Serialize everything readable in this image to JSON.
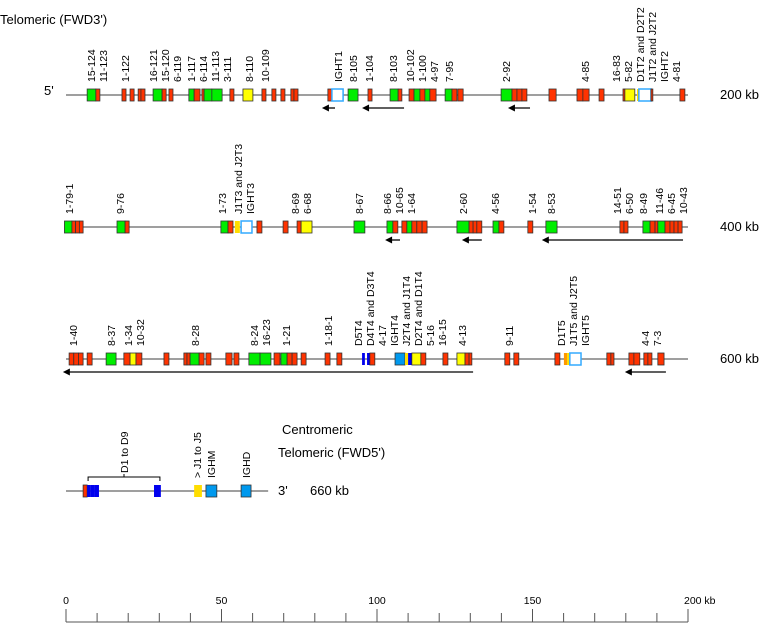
{
  "title_top": "Telomeric (FWD3')",
  "five_prime": "5'",
  "three_prime": "3'",
  "centromeric": "Centromeric",
  "title_bottom": "Telomeric (FWD5')",
  "colors": {
    "r": "#ff3300",
    "g": "#00ee00",
    "y": "#ffff00",
    "ys": "#ffdd00",
    "w": "#ffffff",
    "l": "#0099ee",
    "b": "#0000ee",
    "o": "#ff9900",
    "line": "#666666",
    "w_border": "#33aaff"
  },
  "scale": {
    "min": 0,
    "max": 200,
    "unit_label": "200 kb",
    "ticks": [
      0,
      50,
      100,
      150
    ],
    "minor_step": 10
  },
  "rows": [
    {
      "end_label": "200 kb",
      "boxes": [
        [
          6.8,
          9.6,
          "g"
        ],
        [
          9.6,
          10.9,
          "r"
        ],
        [
          18.0,
          19.3,
          "r"
        ],
        [
          20.6,
          21.9,
          "r"
        ],
        [
          23.2,
          24.1,
          "r"
        ],
        [
          24.1,
          25.4,
          "r"
        ],
        [
          28.0,
          30.9,
          "g"
        ],
        [
          30.9,
          32.2,
          "r"
        ],
        [
          33.1,
          34.4,
          "r"
        ],
        [
          39.5,
          41.2,
          "g"
        ],
        [
          41.2,
          43.1,
          "r"
        ],
        [
          43.7,
          44.4,
          "r"
        ],
        [
          44.4,
          46.9,
          "g"
        ],
        [
          46.9,
          50.2,
          "g"
        ],
        [
          52.7,
          54.0,
          "r"
        ],
        [
          56.9,
          60.1,
          "y"
        ],
        [
          63.0,
          64.3,
          "r"
        ],
        [
          66.2,
          67.5,
          "r"
        ],
        [
          69.1,
          70.4,
          "r"
        ],
        [
          72.3,
          73.3,
          "r"
        ],
        [
          73.3,
          74.6,
          "r"
        ],
        [
          84.2,
          85.5,
          "r"
        ],
        [
          85.5,
          89.1,
          "w"
        ],
        [
          90.7,
          93.9,
          "g"
        ],
        [
          97.1,
          98.4,
          "r"
        ],
        [
          104.2,
          106.8,
          "g"
        ],
        [
          106.8,
          108.0,
          "r"
        ],
        [
          110.3,
          111.9,
          "r"
        ],
        [
          111.9,
          113.8,
          "g"
        ],
        [
          113.8,
          115.4,
          "r"
        ],
        [
          115.4,
          117.0,
          "g"
        ],
        [
          117.0,
          119.0,
          "r"
        ],
        [
          121.9,
          124.1,
          "g"
        ],
        [
          124.1,
          125.7,
          "r"
        ],
        [
          126.0,
          127.7,
          "r"
        ],
        [
          139.9,
          143.4,
          "g"
        ],
        [
          143.4,
          145.0,
          "r"
        ],
        [
          145.0,
          146.6,
          "r"
        ],
        [
          146.6,
          148.2,
          "r"
        ],
        [
          155.3,
          157.6,
          "r"
        ],
        [
          164.3,
          166.2,
          "r"
        ],
        [
          166.2,
          168.2,
          "r"
        ],
        [
          171.4,
          173.0,
          "r"
        ],
        [
          179.1,
          179.7,
          "r"
        ],
        [
          179.7,
          182.9,
          "y"
        ],
        [
          183.6,
          184.2,
          "ys"
        ],
        [
          184.2,
          188.1,
          "w"
        ],
        [
          188.1,
          188.7,
          "r"
        ],
        [
          197.4,
          199.0,
          "r"
        ]
      ],
      "arrows": [
        [
          86.5,
          82.3
        ],
        [
          108.7,
          95.2
        ],
        [
          149.2,
          142.1
        ]
      ],
      "labels": [
        [
          "15-124",
          8.0
        ],
        [
          "11-123",
          10.9
        ],
        [
          "1-122",
          19.0
        ],
        [
          "16-121",
          28.0
        ],
        [
          "15-120",
          31.2
        ],
        [
          "6-119",
          34.4
        ],
        [
          "1-117",
          40.2
        ],
        [
          "6-114",
          43.4
        ],
        [
          "11-113",
          46.3
        ],
        [
          "3-111",
          49.5
        ],
        [
          "8-110",
          58.8
        ],
        [
          "10-109",
          64.0
        ],
        [
          "IGHT1",
          87.4
        ],
        [
          "8-105",
          92.3
        ],
        [
          "1-104",
          97.4
        ],
        [
          "8-103",
          105.1
        ],
        [
          "10-102",
          110.6
        ],
        [
          "1-100",
          113.5
        ],
        [
          "4-97",
          116.4
        ],
        [
          "7-95",
          123.1
        ],
        [
          "2-92",
          141.5
        ],
        [
          "4-85",
          166.9
        ],
        [
          "16-83",
          176.8
        ],
        [
          "5-82",
          179.7
        ],
        [
          "D1T2 and D2T2",
          182.6
        ],
        [
          "J1T2 and J2T2",
          185.5
        ],
        [
          "IGHT2",
          188.4
        ],
        [
          "4-81",
          192.6
        ]
      ]
    },
    {
      "end_label": "400 kb",
      "boxes": [
        [
          -0.5,
          1.9,
          "g"
        ],
        [
          1.9,
          3.1,
          "r"
        ],
        [
          3.1,
          4.3,
          "r"
        ],
        [
          4.3,
          5.5,
          "r"
        ],
        [
          16.4,
          19.0,
          "g"
        ],
        [
          19.0,
          20.3,
          "r"
        ],
        [
          49.8,
          52.1,
          "g"
        ],
        [
          52.1,
          53.7,
          "r"
        ],
        [
          54.3,
          55.9,
          "ys"
        ],
        [
          56.3,
          59.8,
          "w"
        ],
        [
          61.4,
          63.0,
          "r"
        ],
        [
          69.8,
          71.4,
          "r"
        ],
        [
          74.3,
          75.6,
          "r"
        ],
        [
          75.6,
          79.1,
          "y"
        ],
        [
          92.6,
          96.1,
          "g"
        ],
        [
          103.2,
          105.1,
          "g"
        ],
        [
          105.1,
          106.7,
          "r"
        ],
        [
          108.0,
          109.6,
          "r"
        ],
        [
          109.6,
          111.2,
          "g"
        ],
        [
          111.2,
          112.8,
          "r"
        ],
        [
          112.8,
          114.5,
          "r"
        ],
        [
          114.5,
          116.1,
          "r"
        ],
        [
          125.7,
          129.6,
          "g"
        ],
        [
          129.6,
          130.9,
          "r"
        ],
        [
          130.9,
          132.1,
          "r"
        ],
        [
          132.1,
          133.7,
          "r"
        ],
        [
          137.3,
          139.2,
          "g"
        ],
        [
          139.2,
          140.8,
          "r"
        ],
        [
          148.5,
          150.1,
          "r"
        ],
        [
          154.3,
          157.9,
          "g"
        ],
        [
          178.1,
          179.4,
          "r"
        ],
        [
          179.4,
          180.7,
          "r"
        ],
        [
          185.5,
          187.8,
          "g"
        ],
        [
          187.8,
          189.4,
          "r"
        ],
        [
          189.4,
          190.3,
          "r"
        ],
        [
          190.3,
          192.6,
          "g"
        ],
        [
          192.6,
          194.2,
          "r"
        ],
        [
          194.2,
          195.5,
          "r"
        ],
        [
          195.5,
          196.8,
          "r"
        ],
        [
          196.8,
          198.1,
          "r"
        ]
      ],
      "arrows": [
        [
          107.4,
          102.6
        ],
        [
          133.7,
          127.3
        ],
        [
          198.4,
          153.0
        ]
      ],
      "labels": [
        [
          "1-79-1",
          1.0
        ],
        [
          "9-76",
          17.4
        ],
        [
          "1-73",
          50.2
        ],
        [
          "J1T3 and J2T3",
          55.3
        ],
        [
          "IGHT3",
          58.2
        ],
        [
          "8-69",
          73.6
        ],
        [
          "6-68",
          76.5
        ],
        [
          "8-67",
          94.2
        ],
        [
          "8-66",
          103.2
        ],
        [
          "10-65",
          106.1
        ],
        [
          "1-64",
          109.0
        ],
        [
          "2-60",
          127.6
        ],
        [
          "4-56",
          137.9
        ],
        [
          "1-54",
          149.8
        ],
        [
          "8-53",
          155.9
        ],
        [
          "14-51",
          177.1
        ],
        [
          "6-50",
          180.0
        ],
        [
          "8-49",
          185.5
        ],
        [
          "11-46",
          190.7
        ],
        [
          "6-45",
          193.2
        ],
        [
          "10-43",
          196.1
        ]
      ]
    },
    {
      "end_label": "600 kb",
      "boxes": [
        [
          1.0,
          2.5,
          "r"
        ],
        [
          2.5,
          4.0,
          "r"
        ],
        [
          4.0,
          5.5,
          "r"
        ],
        [
          6.8,
          8.4,
          "r"
        ],
        [
          12.9,
          16.1,
          "g"
        ],
        [
          18.6,
          20.6,
          "r"
        ],
        [
          20.6,
          22.5,
          "y"
        ],
        [
          22.5,
          24.4,
          "r"
        ],
        [
          31.5,
          33.1,
          "r"
        ],
        [
          37.9,
          38.9,
          "r"
        ],
        [
          38.9,
          39.9,
          "r"
        ],
        [
          39.9,
          42.8,
          "g"
        ],
        [
          42.8,
          44.4,
          "r"
        ],
        [
          45.0,
          46.6,
          "r"
        ],
        [
          51.4,
          53.4,
          "r"
        ],
        [
          54.0,
          55.6,
          "r"
        ],
        [
          58.8,
          62.4,
          "g"
        ],
        [
          62.4,
          65.9,
          "g"
        ],
        [
          66.9,
          68.8,
          "r"
        ],
        [
          69.1,
          71.1,
          "g"
        ],
        [
          71.1,
          72.7,
          "r"
        ],
        [
          72.7,
          74.3,
          "r"
        ],
        [
          75.6,
          77.2,
          "r"
        ],
        [
          83.3,
          84.9,
          "r"
        ],
        [
          87.1,
          88.7,
          "r"
        ],
        [
          95.2,
          96.1,
          "b"
        ],
        [
          96.8,
          97.7,
          "b"
        ],
        [
          97.7,
          99.3,
          "r"
        ],
        [
          105.8,
          109.0,
          "l"
        ],
        [
          109.0,
          110.0,
          "ys"
        ],
        [
          110.0,
          111.2,
          "b"
        ],
        [
          111.2,
          114.1,
          "y"
        ],
        [
          114.1,
          115.7,
          "r"
        ],
        [
          121.2,
          122.8,
          "r"
        ],
        [
          125.7,
          128.3,
          "y"
        ],
        [
          128.3,
          129.6,
          "r"
        ],
        [
          129.6,
          130.5,
          "r"
        ],
        [
          141.1,
          142.7,
          "r"
        ],
        [
          144.0,
          145.6,
          "r"
        ],
        [
          157.2,
          158.8,
          "r"
        ],
        [
          160.1,
          161.1,
          "o"
        ],
        [
          161.1,
          162.0,
          "ys"
        ],
        [
          162.0,
          165.6,
          "w"
        ],
        [
          173.9,
          175.2,
          "r"
        ],
        [
          175.2,
          176.2,
          "r"
        ],
        [
          181.0,
          182.6,
          "r"
        ],
        [
          182.6,
          184.5,
          "r"
        ],
        [
          185.8,
          187.1,
          "r"
        ],
        [
          187.1,
          188.4,
          "r"
        ],
        [
          190.3,
          192.3,
          "r"
        ]
      ],
      "arrows": [
        [
          130.9,
          -1.0
        ],
        [
          192.9,
          179.7
        ]
      ],
      "labels": [
        [
          "1-40",
          2.3
        ],
        [
          "8-37",
          14.5
        ],
        [
          "1-34",
          19.9
        ],
        [
          "10-32",
          22.8
        ],
        [
          "8-28",
          41.5
        ],
        [
          "8-24",
          60.4
        ],
        [
          "16-23",
          63.3
        ],
        [
          "1-21",
          70.7
        ],
        [
          "1-18-1",
          84.2
        ],
        [
          "D5T4",
          93.9
        ],
        [
          "D4T4 and D3T4",
          96.8
        ],
        [
          "4-17",
          99.7
        ],
        [
          "IGHT4",
          104.2
        ],
        [
          "J2T4 and J1T4",
          107.1
        ],
        [
          "D2T4 and D1T4",
          110.0
        ],
        [
          "5-16",
          113.2
        ],
        [
          "16-15",
          116.1
        ],
        [
          "4-13",
          127.3
        ],
        [
          "9-11",
          142.4
        ],
        [
          "D1T5",
          159.1
        ],
        [
          "J1T5 and J2T5",
          162.0
        ],
        [
          "IGHT5",
          164.9
        ],
        [
          "4-4",
          186.2
        ],
        [
          "7-3",
          189.0
        ]
      ]
    },
    {
      "end_label": "660 kb",
      "line_end": 65,
      "boxes": [
        [
          5.5,
          6.8,
          "r"
        ],
        [
          6.8,
          8.0,
          "b"
        ],
        [
          8.0,
          9.3,
          "b"
        ],
        [
          9.3,
          10.6,
          "b"
        ],
        [
          28.3,
          30.5,
          "b"
        ],
        [
          41.2,
          43.7,
          "ys"
        ],
        [
          45.0,
          48.5,
          "l"
        ],
        [
          56.3,
          59.5,
          "l"
        ]
      ],
      "arrows": [],
      "bracket": {
        "from": 7.1,
        "to": 30.2,
        "label": "D1 to D9"
      },
      "labels": [
        [
          "> J1 to J5",
          42.1
        ],
        [
          "IGHM",
          46.6
        ],
        [
          "IGHD",
          57.9
        ]
      ]
    }
  ]
}
